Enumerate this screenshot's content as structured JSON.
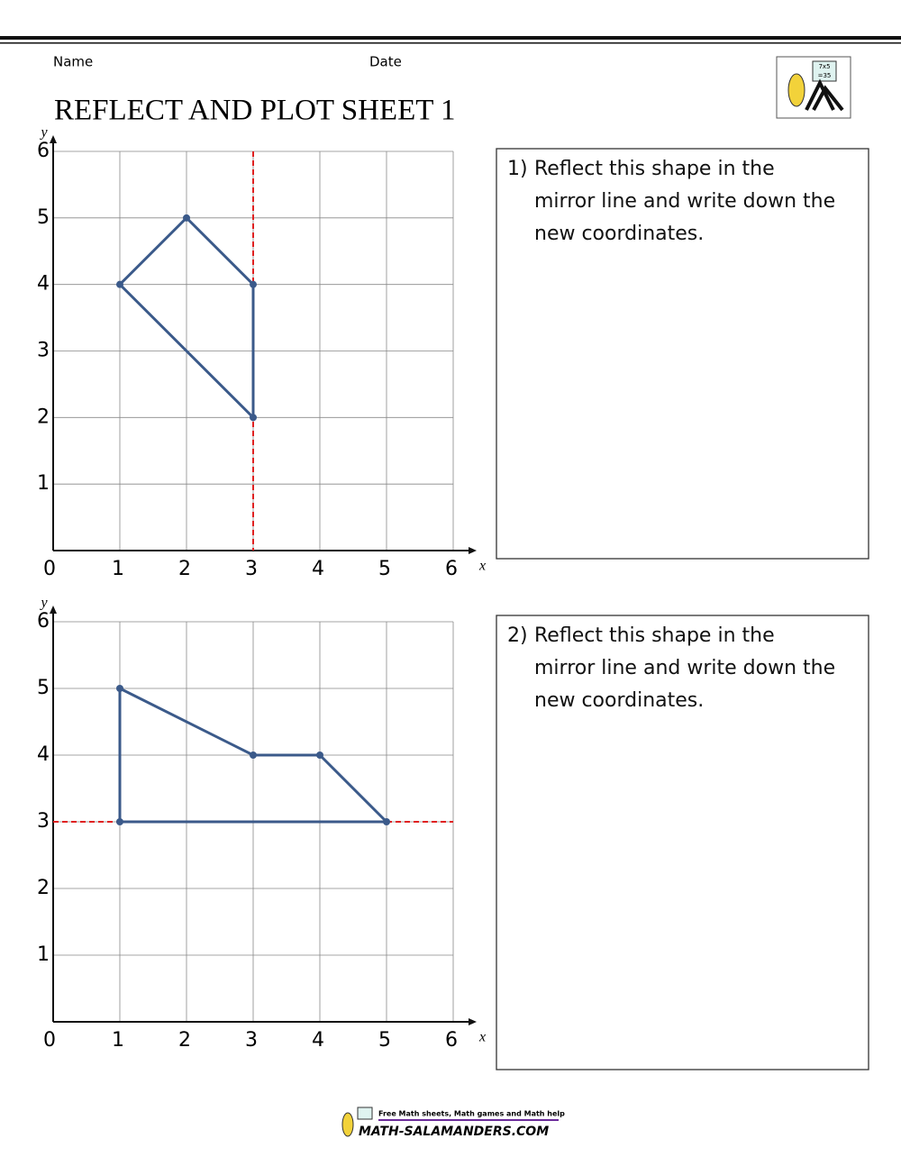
{
  "header": {
    "name_label": "Name",
    "date_label": "Date",
    "title": "REFLECT AND PLOT SHEET 1",
    "logo_text": [
      "7x5",
      "=35"
    ]
  },
  "chart_data": [
    {
      "type": "line",
      "x_label": "x",
      "y_label": "y",
      "origin_label": "0",
      "xlim": [
        0,
        6
      ],
      "ylim": [
        0,
        6
      ],
      "xticks": [
        1,
        2,
        3,
        4,
        5,
        6
      ],
      "yticks": [
        1,
        2,
        3,
        4,
        5,
        6
      ],
      "grid": true,
      "x": [
        1,
        2,
        3,
        3
      ],
      "values": [
        4,
        5,
        4,
        2
      ],
      "closed": true,
      "color": "#3b5a8a",
      "mirror": {
        "axis": "x",
        "value": 3,
        "color": "#e02020"
      }
    },
    {
      "type": "line",
      "x_label": "x",
      "y_label": "y",
      "origin_label": "0",
      "xlim": [
        0,
        6
      ],
      "ylim": [
        0,
        6
      ],
      "xticks": [
        1,
        2,
        3,
        4,
        5,
        6
      ],
      "yticks": [
        1,
        2,
        3,
        4,
        5,
        6
      ],
      "grid": true,
      "x": [
        1,
        3,
        4,
        5,
        1
      ],
      "values": [
        5,
        4,
        4,
        3,
        3
      ],
      "closed": true,
      "color": "#3b5a8a",
      "mirror": {
        "axis": "y",
        "value": 3,
        "color": "#e02020"
      }
    }
  ],
  "questions": [
    {
      "number": "1)",
      "text": "Reflect this shape in the mirror line and write down the new coordinates."
    },
    {
      "number": "2)",
      "text": "Reflect this shape in the mirror line and write down the new coordinates."
    }
  ],
  "footer": {
    "tagline": "Free Math sheets, Math games and Math help",
    "site": "MATH-SALAMANDERS.COM"
  }
}
